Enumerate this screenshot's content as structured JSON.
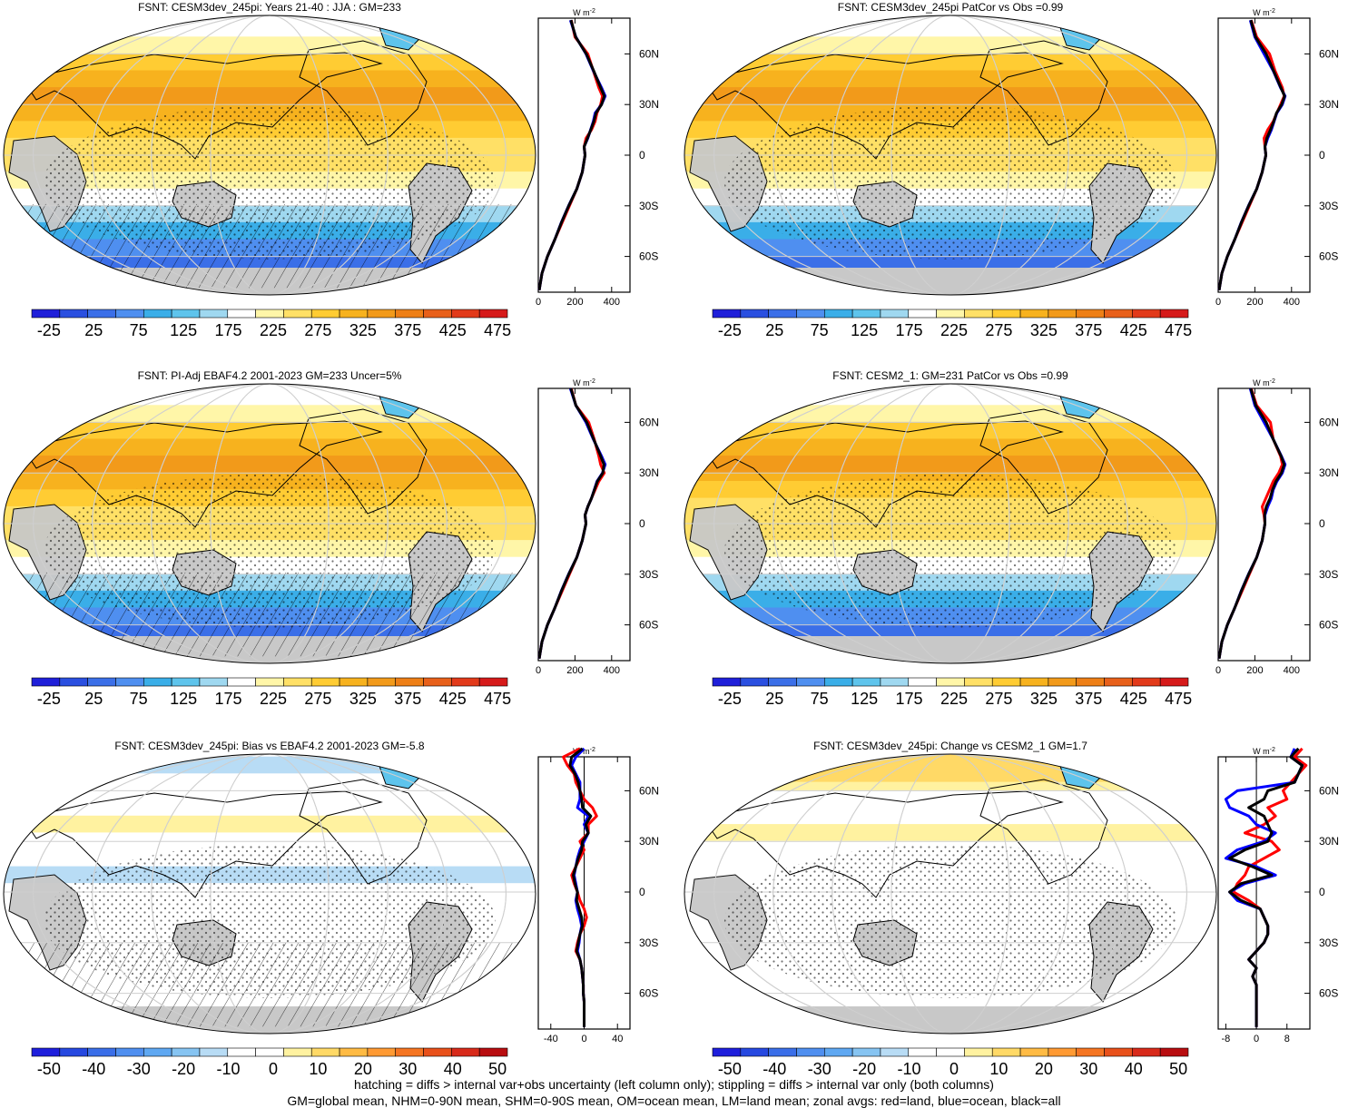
{
  "figure": {
    "footer": {
      "line1": "hatching = diffs > internal var+obs uncertainty (left column only); stippling = diffs > internal var only (both columns)",
      "line2": "GM=global mean, NHM=0-90N mean, SHM=0-90S mean, OM=ocean mean, LM=land mean; zonal avgs: red=land, blue=ocean, black=all"
    },
    "land_color": "#c8c8c8",
    "series_colors": {
      "land": "#ff0000",
      "ocean": "#0000ff",
      "all": "#000000"
    }
  },
  "chart_data": [
    {
      "type": "heatmap",
      "title": "FSNT: CESM3dev_245pi: Years 21-40 : JJA : GM=233",
      "colorbar": {
        "labels": [
          "-25",
          "25",
          "75",
          "125",
          "175",
          "225",
          "275",
          "325",
          "375",
          "425",
          "475"
        ],
        "range": [
          -50,
          500
        ]
      },
      "zonal": {
        "unit_label": "W m",
        "unit_sup": "-2",
        "x_ticks": [
          "0",
          "200",
          "400"
        ],
        "xlim": [
          0,
          500
        ],
        "lat_ticks": [
          "60N",
          "30N",
          "0",
          "30S",
          "60S"
        ],
        "lat": [
          80,
          70,
          60,
          50,
          40,
          35,
          30,
          25,
          20,
          15,
          10,
          5,
          0,
          -10,
          -20,
          -30,
          -40,
          -50,
          -60,
          -70,
          -80
        ],
        "series": [
          {
            "name": "land",
            "values": [
              180,
              200,
              270,
              300,
              330,
              350,
              340,
              320,
              310,
              290,
              260,
              250,
              255,
              240,
              210,
              170,
              130,
              90,
              50,
              20,
              5
            ]
          },
          {
            "name": "ocean",
            "values": [
              175,
              205,
              260,
              300,
              345,
              365,
              345,
              310,
              300,
              285,
              270,
              250,
              255,
              240,
              210,
              165,
              125,
              90,
              50,
              20,
              5
            ]
          },
          {
            "name": "all",
            "values": [
              178,
              204,
              262,
              302,
              340,
              360,
              345,
              315,
              303,
              286,
              268,
              250,
              255,
              240,
              210,
              166,
              126,
              90,
              50,
              20,
              5
            ]
          }
        ]
      }
    },
    {
      "type": "heatmap",
      "title": "FSNT: CESM3dev_245pi PatCor vs Obs =0.99",
      "colorbar": {
        "labels": [
          "-25",
          "25",
          "75",
          "125",
          "175",
          "225",
          "275",
          "325",
          "375",
          "425",
          "475"
        ],
        "range": [
          -50,
          500
        ]
      },
      "zonal": {
        "unit_label": "W m",
        "unit_sup": "-2",
        "x_ticks": [
          "0",
          "200",
          "400"
        ],
        "xlim": [
          0,
          500
        ],
        "lat_ticks": [
          "60N",
          "30N",
          "0",
          "30S",
          "60S"
        ],
        "lat": [
          80,
          70,
          60,
          50,
          40,
          35,
          30,
          25,
          20,
          15,
          10,
          5,
          0,
          -10,
          -20,
          -30,
          -40,
          -50,
          -60,
          -70,
          -80
        ],
        "series": [
          {
            "name": "land",
            "values": [
              180,
              210,
              280,
              310,
              350,
              360,
              340,
              320,
              300,
              270,
              250,
              255,
              260,
              240,
              210,
              170,
              130,
              90,
              50,
              20,
              5
            ]
          },
          {
            "name": "ocean",
            "values": [
              175,
              200,
              250,
              300,
              340,
              365,
              350,
              320,
              305,
              290,
              270,
              255,
              260,
              240,
              210,
              165,
              125,
              90,
              50,
              20,
              5
            ]
          },
          {
            "name": "all",
            "values": [
              178,
              204,
              262,
              302,
              342,
              362,
              346,
              318,
              303,
              285,
              265,
              255,
              260,
              240,
              210,
              166,
              126,
              90,
              50,
              20,
              5
            ]
          }
        ]
      }
    },
    {
      "type": "heatmap",
      "title": "FSNT: PI-Adj EBAF4.2 2001-2023 GM=233 Uncer=5%",
      "colorbar": {
        "labels": [
          "-25",
          "25",
          "75",
          "125",
          "175",
          "225",
          "275",
          "325",
          "375",
          "425",
          "475"
        ],
        "range": [
          -50,
          500
        ]
      },
      "zonal": {
        "unit_label": "W m",
        "unit_sup": "-2",
        "x_ticks": [
          "0",
          "200",
          "400"
        ],
        "xlim": [
          0,
          500
        ],
        "lat_ticks": [
          "60N",
          "30N",
          "0",
          "30S",
          "60S"
        ],
        "lat": [
          80,
          70,
          60,
          50,
          40,
          35,
          30,
          25,
          20,
          15,
          10,
          5,
          0,
          -10,
          -20,
          -30,
          -40,
          -50,
          -60,
          -70,
          -80
        ],
        "series": [
          {
            "name": "land",
            "values": [
              180,
              205,
              275,
              305,
              330,
              340,
              360,
              330,
              310,
              290,
              270,
              255,
              260,
              240,
              210,
              170,
              130,
              90,
              50,
              20,
              5
            ]
          },
          {
            "name": "ocean",
            "values": [
              175,
              205,
              260,
              300,
              345,
              365,
              350,
              320,
              305,
              290,
              270,
              255,
              260,
              240,
              210,
              165,
              125,
              90,
              50,
              20,
              5
            ]
          },
          {
            "name": "all",
            "values": [
              178,
              205,
              265,
              302,
              340,
              358,
              352,
              322,
              306,
              290,
              270,
              255,
              260,
              240,
              210,
              166,
              126,
              90,
              50,
              20,
              5
            ]
          }
        ]
      }
    },
    {
      "type": "heatmap",
      "title": "FSNT: CESM2_1: GM=231 PatCor vs Obs =0.99",
      "colorbar": {
        "labels": [
          "-25",
          "25",
          "75",
          "125",
          "175",
          "225",
          "275",
          "325",
          "375",
          "425",
          "475"
        ],
        "range": [
          -50,
          500
        ]
      },
      "zonal": {
        "unit_label": "W m",
        "unit_sup": "-2",
        "x_ticks": [
          "0",
          "200",
          "400"
        ],
        "xlim": [
          0,
          500
        ],
        "lat_ticks": [
          "60N",
          "30N",
          "0",
          "30S",
          "60S"
        ],
        "lat": [
          80,
          70,
          60,
          50,
          40,
          35,
          30,
          25,
          20,
          15,
          10,
          5,
          0,
          -10,
          -20,
          -30,
          -40,
          -50,
          -60,
          -70,
          -80
        ],
        "series": [
          {
            "name": "land",
            "values": [
              180,
              210,
              285,
              300,
              340,
              350,
              330,
              300,
              280,
              260,
              240,
              250,
              255,
              240,
              210,
              170,
              130,
              90,
              50,
              20,
              5
            ]
          },
          {
            "name": "ocean",
            "values": [
              175,
              200,
              250,
              300,
              345,
              365,
              350,
              320,
              300,
              290,
              270,
              255,
              255,
              240,
              210,
              165,
              125,
              90,
              50,
              20,
              5
            ]
          },
          {
            "name": "all",
            "values": [
              178,
              205,
              262,
              300,
              343,
              360,
              345,
              315,
              296,
              283,
              262,
              253,
              255,
              240,
              210,
              166,
              126,
              90,
              50,
              20,
              5
            ]
          }
        ]
      }
    },
    {
      "type": "heatmap",
      "title": "FSNT: CESM3dev_245pi: Bias vs EBAF4.2 2001-2023 GM=-5.8",
      "colorbar": {
        "labels": [
          "-50",
          "-40",
          "-30",
          "-20",
          "-10",
          "0",
          "10",
          "20",
          "30",
          "40",
          "50"
        ],
        "range": [
          -55,
          55
        ]
      },
      "zonal": {
        "unit_label": "W m",
        "unit_sup": "-2",
        "x_ticks": [
          "-40",
          "0",
          "40"
        ],
        "xlim": [
          -55,
          55
        ],
        "lat_ticks": [
          "60N",
          "30N",
          "0",
          "30S",
          "60S"
        ],
        "lat": [
          85,
          80,
          75,
          70,
          65,
          60,
          55,
          50,
          45,
          40,
          35,
          30,
          25,
          20,
          15,
          10,
          5,
          0,
          -5,
          -10,
          -15,
          -20,
          -25,
          -30,
          -35,
          -40,
          -45,
          -50,
          -55,
          -60,
          -65,
          -70,
          -80
        ],
        "series": [
          {
            "name": "land",
            "values": [
              -5,
              -25,
              -20,
              -12,
              -10,
              -5,
              0,
              10,
              15,
              5,
              5,
              -5,
              0,
              -5,
              -10,
              -15,
              -12,
              -8,
              -5,
              0,
              3,
              0,
              -5,
              -8,
              -10,
              -5,
              -3,
              -2,
              -1,
              -1,
              0,
              0,
              0
            ]
          },
          {
            "name": "ocean",
            "values": [
              0,
              -10,
              -15,
              -10,
              -5,
              -5,
              -5,
              -8,
              5,
              0,
              5,
              0,
              -5,
              -8,
              -10,
              -12,
              -10,
              -8,
              -10,
              -8,
              -5,
              -3,
              -5,
              -6,
              -8,
              -5,
              -3,
              -2,
              -1,
              -1,
              0,
              0,
              0
            ]
          },
          {
            "name": "all",
            "values": [
              -2,
              -15,
              -17,
              -11,
              -7,
              -5,
              -3,
              -2,
              8,
              2,
              5,
              -2,
              -3,
              -7,
              -10,
              -13,
              -11,
              -8,
              -9,
              -6,
              -3,
              -2,
              -5,
              -7,
              -9,
              -5,
              -3,
              -2,
              -1,
              -1,
              0,
              0,
              0
            ]
          }
        ]
      }
    },
    {
      "type": "heatmap",
      "title": "FSNT: CESM3dev_245pi: Change vs CESM2_1 GM=1.7",
      "colorbar": {
        "labels": [
          "-50",
          "-40",
          "-30",
          "-20",
          "-10",
          "0",
          "10",
          "20",
          "30",
          "40",
          "50"
        ],
        "range": [
          -55,
          55
        ]
      },
      "zonal": {
        "unit_label": "W m",
        "unit_sup": "-2",
        "x_ticks": [
          "-8",
          "0",
          "8"
        ],
        "xlim": [
          -10,
          14
        ],
        "lat_ticks": [
          "60N",
          "30N",
          "0",
          "30S",
          "60S"
        ],
        "lat": [
          85,
          80,
          75,
          70,
          65,
          60,
          55,
          50,
          45,
          40,
          35,
          30,
          25,
          20,
          15,
          10,
          5,
          0,
          -5,
          -10,
          -15,
          -20,
          -25,
          -30,
          -35,
          -40,
          -45,
          -50,
          -55,
          -60,
          -65,
          -70,
          -80
        ],
        "series": [
          {
            "name": "land",
            "values": [
              12,
              10,
              13,
              11,
              9,
              7,
              8,
              3,
              5,
              2,
              -3,
              4,
              6,
              2,
              -2,
              -3,
              -5,
              -6,
              -2,
              1,
              2,
              3,
              3,
              2,
              0,
              -2,
              0,
              -1,
              0,
              0,
              0,
              0,
              0
            ]
          },
          {
            "name": "ocean",
            "values": [
              10,
              9,
              12,
              11,
              10,
              -5,
              -8,
              -7,
              -2,
              0,
              5,
              2,
              -5,
              -8,
              0,
              5,
              -3,
              -7,
              -5,
              1,
              2,
              3,
              3,
              2,
              0,
              -2,
              0,
              -1,
              0,
              0,
              0,
              0,
              0
            ]
          },
          {
            "name": "all",
            "values": [
              11,
              9,
              12,
              11,
              10,
              3,
              2,
              -2,
              2,
              3,
              4,
              3,
              -3,
              -7,
              -1,
              4,
              -4,
              -7,
              -4,
              1,
              2,
              3,
              3,
              2,
              0,
              -2,
              0,
              -1,
              0,
              0,
              0,
              0,
              0
            ]
          }
        ]
      }
    }
  ]
}
